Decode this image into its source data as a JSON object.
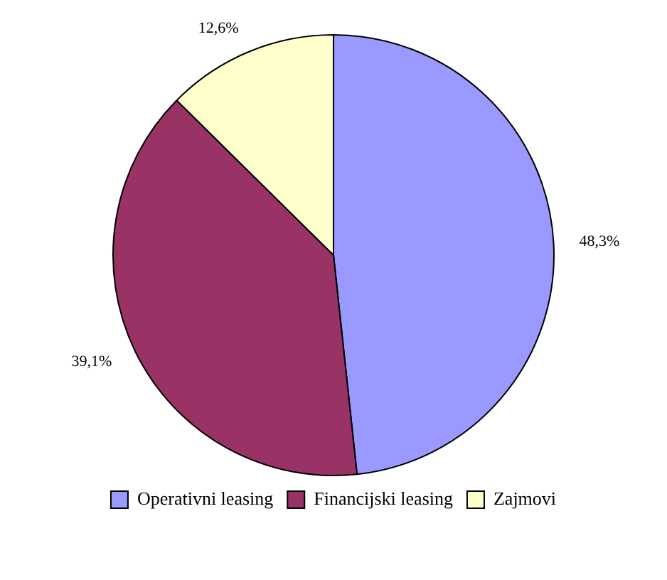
{
  "chart_data": {
    "type": "pie",
    "categories": [
      "Operativni leasing",
      "Financijski leasing",
      "Zajmovi"
    ],
    "values": [
      48.3,
      39.1,
      12.6
    ],
    "colors": [
      "#9999ff",
      "#993366",
      "#ffffcc"
    ],
    "value_labels": [
      "48,3%",
      "39,1%",
      "12,6%"
    ],
    "legend": "bottom"
  }
}
